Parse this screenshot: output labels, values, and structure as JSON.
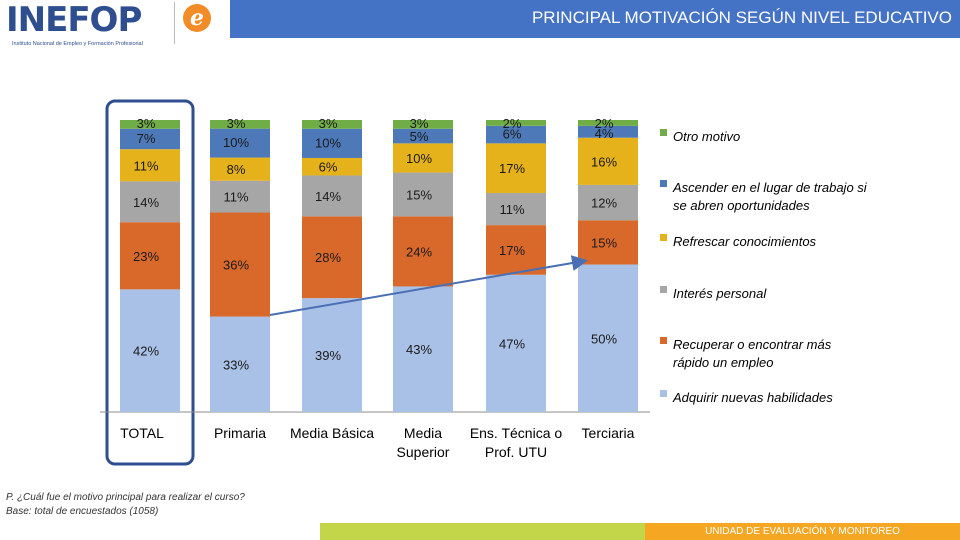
{
  "header": {
    "title": "PRINCIPAL MOTIVACIÓN SEGÚN NIVEL EDUCATIVO",
    "bar_color": "#4472c4"
  },
  "logos": {
    "inefop_text": "INEFOP",
    "inefop_subtitle": "Instituto Nacional de Empleo y Formación Profesional",
    "e_letter": "e"
  },
  "chart_data": {
    "type": "bar",
    "stacked": true,
    "percent": true,
    "categories": [
      "TOTAL",
      "Primaria",
      "Media Básica",
      "Media Superior",
      "Ens. Técnica o Prof. UTU",
      "Terciaria"
    ],
    "category_lines": [
      [
        "TOTAL"
      ],
      [
        "Primaria"
      ],
      [
        "Media Básica"
      ],
      [
        "Media",
        "Superior"
      ],
      [
        "Ens. Técnica o",
        "Prof. UTU"
      ],
      [
        "Terciaria"
      ]
    ],
    "series": [
      {
        "name": "Adquirir nuevas habilidades",
        "color": "#a9c1e6",
        "values": [
          42,
          33,
          39,
          43,
          47,
          50
        ]
      },
      {
        "name": "Recuperar o encontrar más rápido un empleo",
        "color": "#d9692b",
        "values": [
          23,
          36,
          28,
          24,
          17,
          15
        ]
      },
      {
        "name": "Interés personal",
        "color": "#a6a6a6",
        "values": [
          14,
          11,
          14,
          15,
          11,
          12
        ]
      },
      {
        "name": "Refrescar conocimientos",
        "color": "#e6b21c",
        "values": [
          11,
          8,
          6,
          10,
          17,
          16
        ]
      },
      {
        "name": "Ascender en el lugar de trabajo si se abren oportunidades",
        "color": "#4e79b8",
        "values": [
          7,
          10,
          10,
          5,
          6,
          4
        ]
      },
      {
        "name": "Otro motivo",
        "color": "#70ad47",
        "values": [
          3,
          3,
          3,
          3,
          2,
          2
        ]
      }
    ],
    "legend_order": [
      {
        "lines": [
          "Otro motivo"
        ],
        "color": "#70ad47"
      },
      {
        "lines": [
          "Ascender en el lugar de trabajo si",
          "se abren oportunidades"
        ],
        "color": "#4e79b8"
      },
      {
        "lines": [
          "Refrescar conocimientos"
        ],
        "color": "#e6b21c"
      },
      {
        "lines": [
          "Interés personal"
        ],
        "color": "#a6a6a6"
      },
      {
        "lines": [
          "Recuperar o encontrar más",
          "rápido un empleo"
        ],
        "color": "#d9692b"
      },
      {
        "lines": [
          "Adquirir nuevas habilidades"
        ],
        "color": "#a9c1e6"
      }
    ],
    "legend_position": "right",
    "highlighted_category": "TOTAL",
    "trend_arrow": {
      "from_category": "Primaria",
      "to_category": "Ens. Técnica o Prof. UTU",
      "color": "#4a6fb5"
    }
  },
  "note": {
    "line1": "P. ¿Cuál fue el motivo principal para realizar el curso?",
    "line2": "Base: total de encuestados (1058)"
  },
  "footer": {
    "label": "UNIDAD DE EVALUACIÓN Y MONITOREO"
  }
}
